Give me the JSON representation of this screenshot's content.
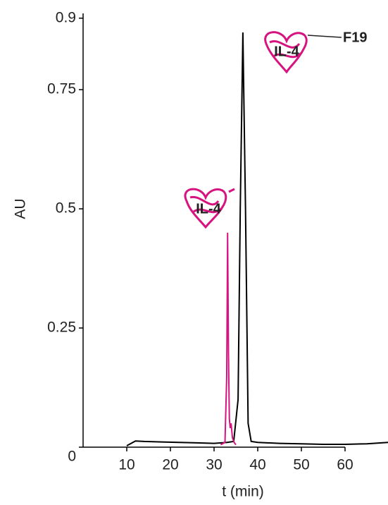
{
  "chart_data": {
    "type": "line",
    "x_label": "t (min)",
    "y_label": "AU",
    "xlim": [
      0,
      70
    ],
    "xticks": [
      10,
      20,
      30,
      40,
      50,
      60
    ],
    "ylim": [
      0,
      0.91
    ],
    "yticks": [
      0,
      0.25,
      0.5,
      0.75,
      0.9
    ],
    "series": [
      {
        "color": "#000000",
        "x": [
          10,
          11,
          12,
          14,
          18,
          22,
          26,
          30,
          33,
          34.5,
          35.5,
          36,
          36.6,
          37.2,
          37.8,
          38.5,
          40,
          45,
          50,
          55,
          60,
          65,
          70
        ],
        "values": [
          0.003,
          0.008,
          0.013,
          0.012,
          0.011,
          0.01,
          0.009,
          0.008,
          0.01,
          0.012,
          0.1,
          0.5,
          0.87,
          0.5,
          0.05,
          0.012,
          0.01,
          0.008,
          0.007,
          0.006,
          0.006,
          0.007,
          0.01
        ]
      },
      {
        "color": "#d6137f",
        "x": [
          31.5,
          32.5,
          32.9,
          33.1,
          33.3,
          33.5,
          33.7,
          33.9,
          34.2,
          34.6,
          35
        ],
        "values": [
          0.005,
          0.01,
          0.15,
          0.45,
          0.2,
          0.06,
          0.04,
          0.05,
          0.02,
          0.01,
          0.005
        ]
      }
    ],
    "annotations": [
      "IL-4",
      "IL-4",
      "F19"
    ]
  }
}
